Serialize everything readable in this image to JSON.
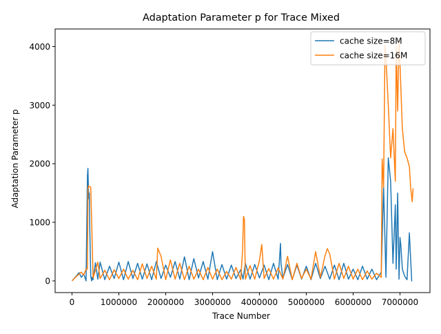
{
  "chart_data": {
    "type": "line",
    "title": "Adaptation Parameter p for Trace Mixed",
    "xlabel": "Trace Number",
    "ylabel": "Adaptation Parameter p",
    "xlim": [
      -360000,
      7640000
    ],
    "ylim": [
      -200,
      4300
    ],
    "xticks": [
      0,
      1000000,
      2000000,
      3000000,
      4000000,
      5000000,
      6000000,
      7000000
    ],
    "xtick_labels": [
      "0",
      "1000000",
      "2000000",
      "3000000",
      "4000000",
      "5000000",
      "6000000",
      "7000000"
    ],
    "yticks": [
      0,
      1000,
      2000,
      3000,
      4000
    ],
    "ytick_labels": [
      "0",
      "1000",
      "2000",
      "3000",
      "4000"
    ],
    "grid": false,
    "legend_position": "top-right",
    "series": [
      {
        "name": "cache size=8M",
        "color": "#1f77b4",
        "x": [
          0,
          100000,
          150000,
          200000,
          250000,
          300000,
          330000,
          340000,
          350000,
          360000,
          370000,
          380000,
          400000,
          420000,
          430000,
          450000,
          500000,
          550000,
          600000,
          700000,
          800000,
          900000,
          1000000,
          1100000,
          1200000,
          1300000,
          1400000,
          1500000,
          1600000,
          1700000,
          1800000,
          1900000,
          2000000,
          2100000,
          2200000,
          2300000,
          2400000,
          2500000,
          2600000,
          2700000,
          2800000,
          2900000,
          3000000,
          3100000,
          3200000,
          3300000,
          3400000,
          3500000,
          3600000,
          3650000,
          3700000,
          3800000,
          3900000,
          4000000,
          4100000,
          4200000,
          4300000,
          4400000,
          4450000,
          4460000,
          4500000,
          4600000,
          4700000,
          4800000,
          4900000,
          5000000,
          5100000,
          5200000,
          5300000,
          5400000,
          5500000,
          5600000,
          5700000,
          5800000,
          5900000,
          6000000,
          6100000,
          6200000,
          6300000,
          6400000,
          6500000,
          6600000,
          6650000,
          6700000,
          6750000,
          6800000,
          6850000,
          6900000,
          6920000,
          6950000,
          6980000,
          7000000,
          7020000,
          7050000,
          7100000,
          7150000,
          7200000,
          7250000,
          7260000
        ],
        "y": [
          0,
          90,
          140,
          60,
          120,
          0,
          1800,
          1920,
          1600,
          1400,
          1500,
          900,
          80,
          0,
          60,
          20,
          310,
          30,
          320,
          20,
          250,
          40,
          320,
          20,
          330,
          40,
          300,
          30,
          290,
          20,
          330,
          40,
          270,
          60,
          330,
          30,
          410,
          20,
          380,
          50,
          330,
          30,
          500,
          20,
          280,
          30,
          270,
          40,
          190,
          30,
          300,
          30,
          280,
          50,
          270,
          20,
          300,
          30,
          640,
          300,
          40,
          280,
          20,
          270,
          30,
          250,
          20,
          300,
          40,
          250,
          30,
          270,
          20,
          300,
          30,
          200,
          20,
          250,
          30,
          200,
          20,
          150,
          1600,
          60,
          2100,
          1700,
          300,
          1300,
          200,
          1500,
          30,
          740,
          600,
          200,
          80,
          20,
          820,
          0,
          0
        ],
        "x_note": null
      },
      {
        "name": "cache size=16M",
        "color": "#ff7f0e",
        "x": [
          0,
          100000,
          200000,
          250000,
          300000,
          330000,
          340000,
          350000,
          400000,
          430000,
          450000,
          500000,
          550000,
          600000,
          700000,
          800000,
          900000,
          1000000,
          1100000,
          1200000,
          1300000,
          1400000,
          1500000,
          1600000,
          1700000,
          1800000,
          1830000,
          1900000,
          2000000,
          2100000,
          2200000,
          2300000,
          2400000,
          2500000,
          2600000,
          2700000,
          2800000,
          2900000,
          3000000,
          3100000,
          3200000,
          3300000,
          3400000,
          3500000,
          3600000,
          3640000,
          3660000,
          3680000,
          3700000,
          3800000,
          3900000,
          4000000,
          4050000,
          4100000,
          4200000,
          4300000,
          4400000,
          4500000,
          4600000,
          4700000,
          4800000,
          4900000,
          5000000,
          5100000,
          5200000,
          5300000,
          5400000,
          5450000,
          5500000,
          5600000,
          5700000,
          5800000,
          5900000,
          6000000,
          6100000,
          6200000,
          6300000,
          6400000,
          6500000,
          6600000,
          6620000,
          6650000,
          6680000,
          6700000,
          6750000,
          6800000,
          6850000,
          6900000,
          6920000,
          6950000,
          6980000,
          7000000,
          7050000,
          7100000,
          7150000,
          7200000,
          7230000,
          7260000,
          7280000
        ],
        "y": [
          0,
          80,
          150,
          100,
          200,
          200,
          1550,
          1620,
          1600,
          700,
          50,
          180,
          320,
          40,
          180,
          20,
          190,
          40,
          200,
          30,
          180,
          20,
          290,
          40,
          250,
          30,
          560,
          420,
          20,
          360,
          30,
          300,
          20,
          250,
          30,
          200,
          20,
          230,
          30,
          200,
          20,
          160,
          30,
          230,
          20,
          510,
          1100,
          1050,
          30,
          260,
          30,
          350,
          620,
          40,
          210,
          30,
          220,
          30,
          420,
          20,
          300,
          40,
          200,
          30,
          500,
          60,
          430,
          550,
          460,
          30,
          300,
          40,
          250,
          30,
          200,
          20,
          170,
          30,
          130,
          60,
          2080,
          1600,
          4020,
          3800,
          3000,
          2100,
          2600,
          1700,
          4000,
          2900,
          4100,
          3700,
          2600,
          2200,
          2100,
          1950,
          1580,
          1350,
          1580
        ],
        "x_note": null
      }
    ]
  }
}
